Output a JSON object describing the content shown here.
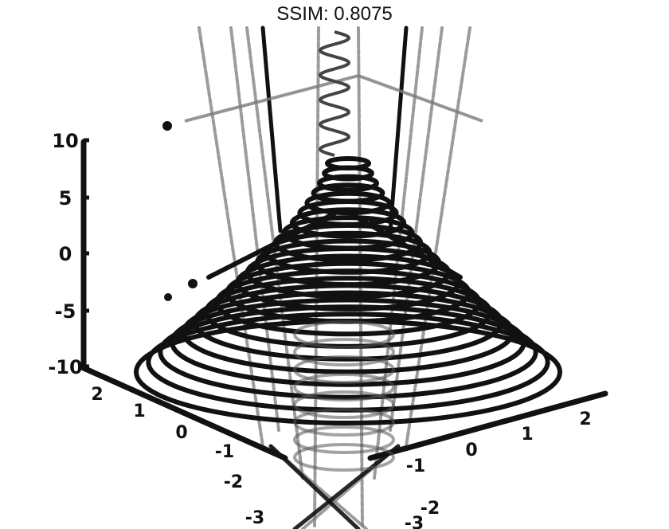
{
  "title": "SSIM: 0.8075",
  "chart_data": {
    "type": "line",
    "title": "SSIM: 0.8075",
    "xlabel": "",
    "ylabel": "",
    "zlabel": "",
    "series": [
      {
        "kind": "conical-spiral",
        "turns": 22,
        "z_range": [
          -10,
          10
        ],
        "max_radius": 2.6
      }
    ],
    "z_ticks": [
      "10",
      "5",
      "0",
      "-5",
      "-10"
    ],
    "left_ticks": [
      "2",
      "1",
      "0",
      "-1",
      "-2",
      "-3"
    ],
    "right_ticks": [
      "2",
      "1",
      "0",
      "-1",
      "-2",
      "-3"
    ],
    "zlim": [
      -10,
      10
    ],
    "colors": {
      "ink": "#111111",
      "ghost": "#7a7a7a"
    }
  }
}
